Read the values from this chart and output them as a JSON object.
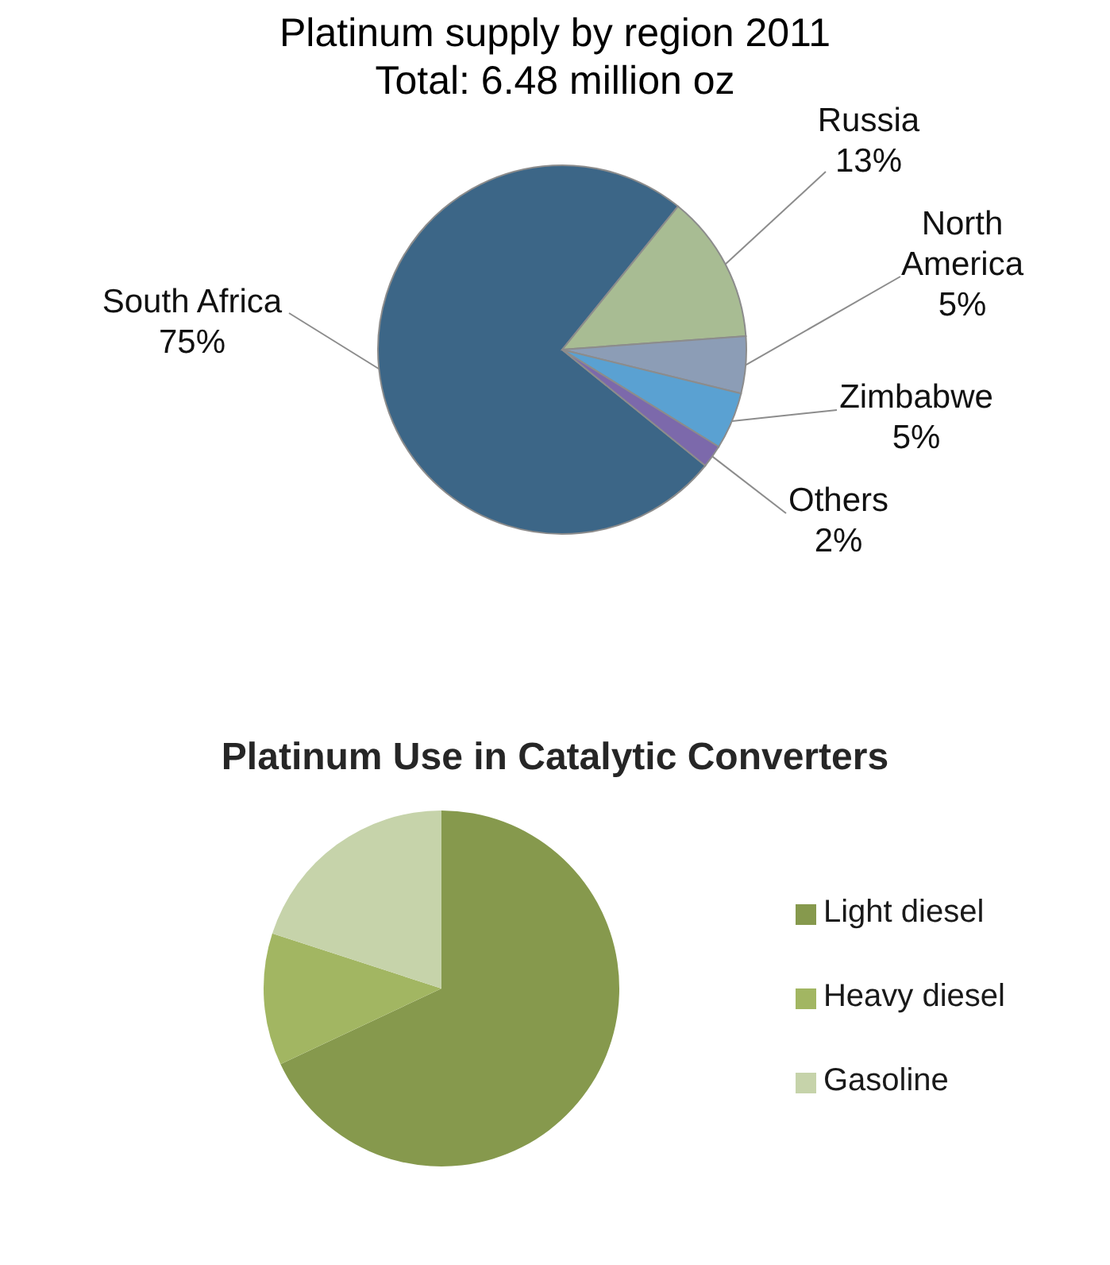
{
  "chart_data": [
    {
      "type": "pie",
      "title": "Platinum supply by region 2011",
      "subtitle": "Total: 6.48 million oz",
      "categories": [
        "South Africa",
        "Russia",
        "North America",
        "Zimbabwe",
        "Others"
      ],
      "values": [
        75,
        13,
        5,
        5,
        2
      ],
      "colors": [
        "#3c6687",
        "#a8bc93",
        "#8c9db6",
        "#5aa1d2",
        "#7c69ab"
      ],
      "value_labels": [
        "75%",
        "13%",
        "5%",
        "5%",
        "2%"
      ]
    },
    {
      "type": "pie",
      "title": "Platinum Use in Catalytic Converters",
      "categories": [
        "Light diesel",
        "Heavy diesel",
        "Gasoline"
      ],
      "values": [
        68,
        12,
        20
      ],
      "colors": [
        "#86994d",
        "#a2b662",
        "#c6d3aa"
      ],
      "legend": "right"
    }
  ]
}
